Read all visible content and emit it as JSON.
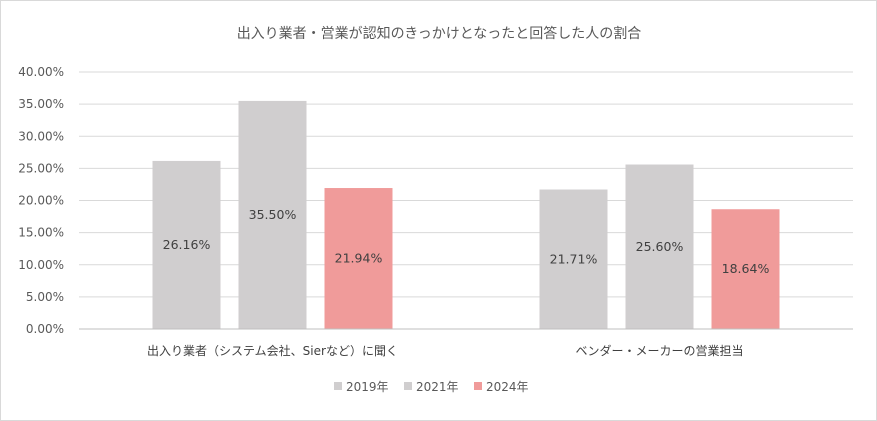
{
  "chart_data": {
    "type": "bar",
    "title": "出入り業者・営業が認知のきっかけとなったと回答した人の割合",
    "categories": [
      "出入り業者（システム会社、Sierなど）に聞く",
      "ベンダー・メーカーの営業担当"
    ],
    "series": [
      {
        "name": "2019年",
        "values": [
          26.16,
          21.71
        ],
        "labels": [
          "26.16%",
          "21.71%"
        ],
        "color": "#d0cecf"
      },
      {
        "name": "2021年",
        "values": [
          35.5,
          25.6
        ],
        "labels": [
          "35.50%",
          "25.60%"
        ],
        "color": "#d0cecf"
      },
      {
        "name": "2024年",
        "values": [
          21.94,
          18.64
        ],
        "labels": [
          "21.94%",
          "18.64%"
        ],
        "color": "#f09b9a"
      }
    ],
    "ylim": [
      0,
      40
    ],
    "yticks": [
      0,
      5,
      10,
      15,
      20,
      25,
      30,
      35,
      40
    ],
    "ytick_labels": [
      "0.00%",
      "5.00%",
      "10.00%",
      "15.00%",
      "20.00%",
      "25.00%",
      "30.00%",
      "35.00%",
      "40.00%"
    ],
    "xlabel": "",
    "ylabel": "",
    "grid": true,
    "legend_position": "bottom"
  }
}
